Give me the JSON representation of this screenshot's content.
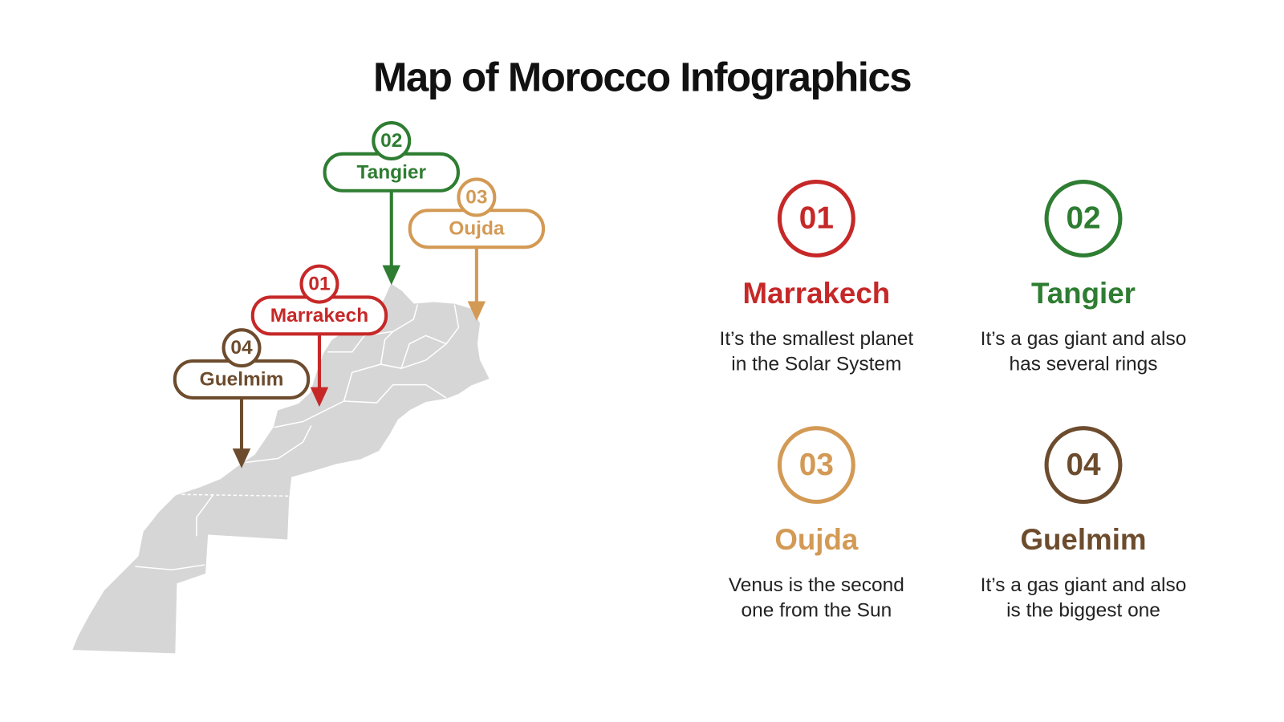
{
  "title": "Map of Morocco Infographics",
  "items": [
    {
      "number": "01",
      "name": "Marrakech",
      "color": "#c62828",
      "description": [
        "It’s the smallest planet",
        "in the Solar System"
      ]
    },
    {
      "number": "02",
      "name": "Tangier",
      "color": "#2e7d32",
      "description": [
        "It’s a gas giant and also",
        "has several rings"
      ]
    },
    {
      "number": "03",
      "name": "Oujda",
      "color": "#d39a55",
      "description": [
        "Venus is the second",
        "one from the Sun"
      ]
    },
    {
      "number": "04",
      "name": "Guelmim",
      "color": "#6d4c2e",
      "description": [
        "It’s a gas giant and also",
        "is the biggest one"
      ]
    }
  ]
}
